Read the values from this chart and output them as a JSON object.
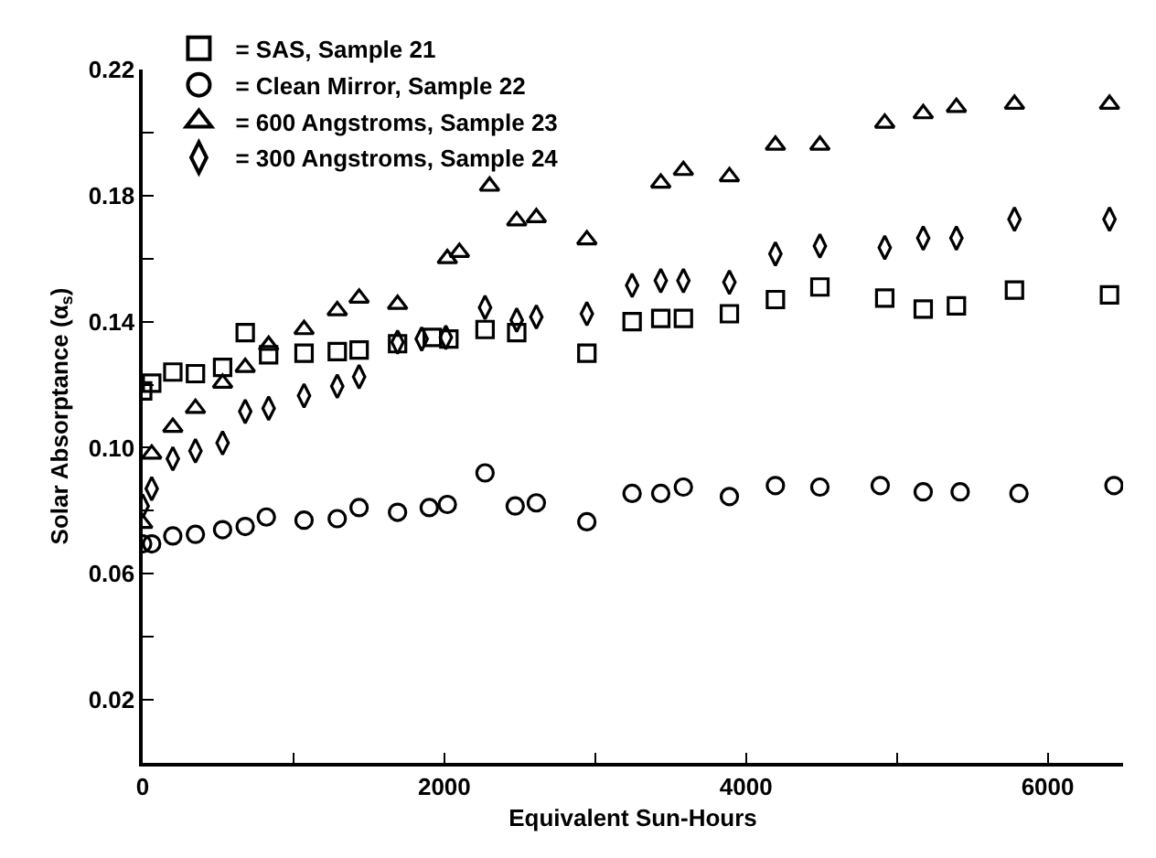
{
  "chart_data": {
    "type": "scatter",
    "xlabel": "Equivalent Sun-Hours",
    "ylabel": "Solar Absorptance (α$_{s}$)",
    "xlim": [
      0,
      6500
    ],
    "xticks": [
      0,
      {
        "value": 1000,
        "label": null
      },
      2000,
      {
        "value": 3000,
        "label": null
      },
      4000,
      {
        "value": 5000,
        "label": null
      },
      6000
    ],
    "ylim": [
      0,
      0.22
    ],
    "yticks": [
      {
        "value": 0,
        "label": null
      },
      0.02,
      {
        "value": 0.04,
        "label": null
      },
      0.06,
      {
        "value": 0.08,
        "label": null
      },
      {
        "value": 0.1,
        "label": "0.10"
      },
      {
        "value": 0.12,
        "label": null
      },
      0.14,
      {
        "value": 0.16,
        "label": null
      },
      0.18,
      {
        "value": 0.2,
        "label": null
      },
      0.22
    ],
    "legend": "top left",
    "series": [
      {
        "name": "= SAS, Sample 21",
        "color": "#000000",
        "marker": "square",
        "x": [
          0,
          60,
          200,
          350,
          530,
          680,
          835,
          1070,
          1290,
          1435,
          1690,
          1920,
          2030,
          2270,
          2480,
          2945,
          3245,
          3435,
          3585,
          3890,
          4195,
          4490,
          4920,
          5175,
          5395,
          5780,
          6410
        ],
        "values": [
          0.118,
          0.1205,
          0.124,
          0.1235,
          0.1255,
          0.1365,
          0.1295,
          0.13,
          0.1305,
          0.131,
          0.133,
          0.135,
          0.1345,
          0.1375,
          0.1365,
          0.13,
          0.14,
          0.141,
          0.141,
          0.1425,
          0.147,
          0.151,
          0.1475,
          0.144,
          0.145,
          0.15,
          0.1485
        ]
      },
      {
        "name": "= Clean Mirror, Sample 22",
        "color": "#000000",
        "marker": "circle",
        "x": [
          0,
          60,
          200,
          350,
          530,
          680,
          820,
          1070,
          1290,
          1435,
          1690,
          1900,
          2020,
          2270,
          2470,
          2610,
          2945,
          3245,
          3435,
          3585,
          3890,
          4195,
          4490,
          4890,
          5175,
          5420,
          5810,
          6440
        ],
        "values": [
          0.0695,
          0.0695,
          0.072,
          0.0725,
          0.074,
          0.075,
          0.078,
          0.077,
          0.0775,
          0.081,
          0.0795,
          0.081,
          0.082,
          0.092,
          0.0815,
          0.0825,
          0.0765,
          0.0855,
          0.0855,
          0.0875,
          0.0845,
          0.088,
          0.0875,
          0.088,
          0.086,
          0.086,
          0.0855,
          0.088
        ]
      },
      {
        "name": "= 600 Angstroms, Sample 23",
        "color": "#000000",
        "marker": "triangle",
        "x": [
          0,
          60,
          200,
          350,
          530,
          680,
          835,
          1070,
          1290,
          1435,
          1690,
          2020,
          2100,
          2300,
          2480,
          2610,
          2945,
          3435,
          3585,
          3890,
          4195,
          4490,
          4920,
          5175,
          5395,
          5780,
          6410
        ],
        "values": [
          0.076,
          0.098,
          0.1065,
          0.1125,
          0.1205,
          0.1255,
          0.1325,
          0.1375,
          0.1435,
          0.1475,
          0.1455,
          0.16,
          0.162,
          0.183,
          0.172,
          0.173,
          0.166,
          0.184,
          0.188,
          0.186,
          0.196,
          0.196,
          0.203,
          0.206,
          0.208,
          0.209,
          0.209
        ]
      },
      {
        "name": "= 300 Angstroms, Sample 24",
        "color": "#000000",
        "marker": "diamond",
        "x": [
          0,
          60,
          200,
          350,
          530,
          680,
          835,
          1070,
          1290,
          1435,
          1690,
          1850,
          2010,
          2270,
          2480,
          2610,
          2945,
          3245,
          3435,
          3585,
          3890,
          4195,
          4490,
          4920,
          5175,
          5395,
          5780,
          6410
        ],
        "values": [
          0.0815,
          0.087,
          0.0965,
          0.099,
          0.1015,
          0.1115,
          0.1125,
          0.1165,
          0.1195,
          0.1225,
          0.1335,
          0.1345,
          0.135,
          0.1445,
          0.1405,
          0.1415,
          0.1425,
          0.1515,
          0.153,
          0.153,
          0.1525,
          0.1615,
          0.164,
          0.1635,
          0.1665,
          0.1665,
          0.1725,
          0.1725
        ]
      }
    ]
  }
}
